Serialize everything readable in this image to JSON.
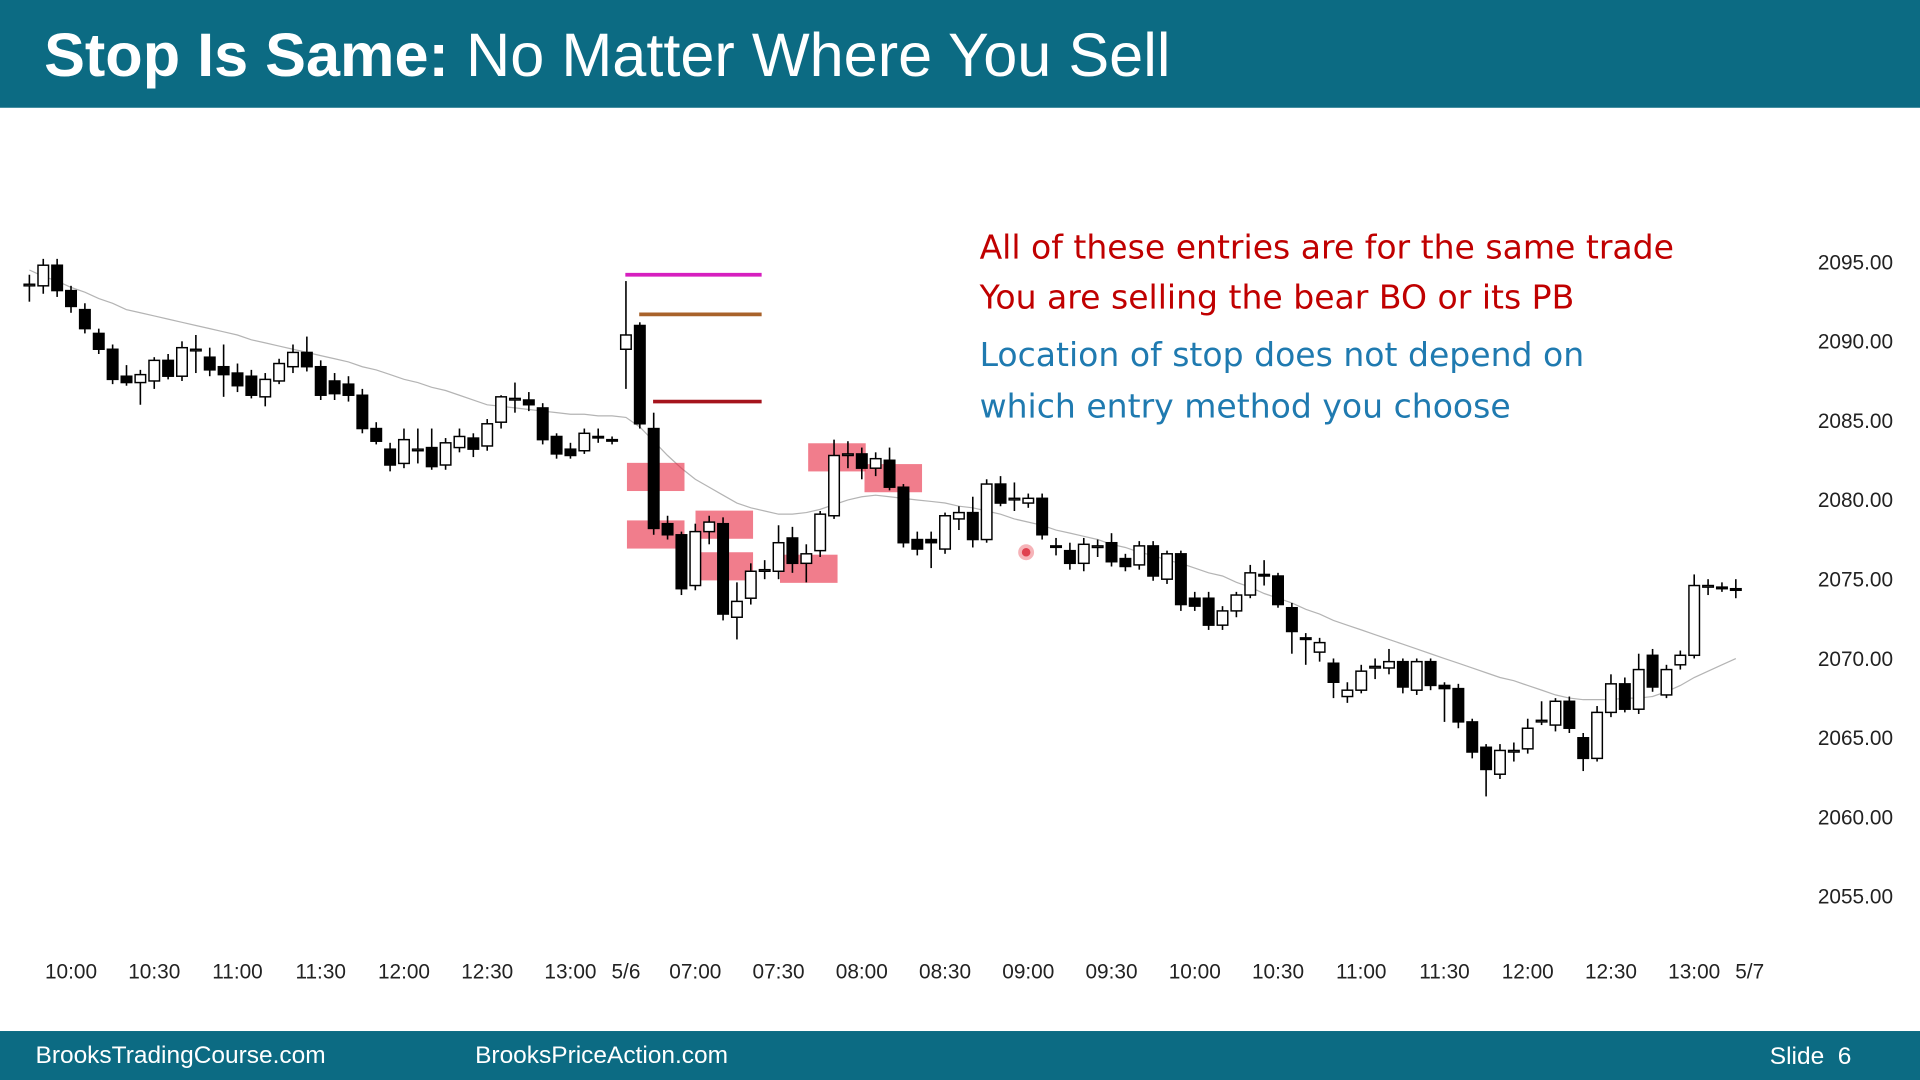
{
  "chart_data": {
    "type": "candlestick",
    "title": "Stop Is Same:",
    "subtitle": "No Matter Where You Sell",
    "annotations": [
      {
        "text": "All of these entries are for the same trade",
        "color": "#c00000"
      },
      {
        "text": "You are selling the bear BO or its PB",
        "color": "#c00000"
      },
      {
        "text": "Location of stop does not depend on",
        "color": "#1f7ab0"
      },
      {
        "text": "which entry method you choose",
        "color": "#1f7ab0"
      }
    ],
    "footer": {
      "left": "BrooksTradingCourse.com",
      "center": "BrooksPriceAction.com",
      "slide": "Slide  6"
    },
    "ylim": [
      2053,
      2101
    ],
    "yticks": [
      {
        "value": 2055,
        "label": "2055.00"
      },
      {
        "value": 2060,
        "label": "2060.00"
      },
      {
        "value": 2065,
        "label": "2065.00"
      },
      {
        "value": 2070,
        "label": "2070.00"
      },
      {
        "value": 2075,
        "label": "2075.00"
      },
      {
        "value": 2080,
        "label": "2080.00"
      },
      {
        "value": 2085,
        "label": "2085.00"
      },
      {
        "value": 2090,
        "label": "2090.00"
      },
      {
        "value": 2095,
        "label": "2095.00"
      }
    ],
    "categories": [
      null,
      null,
      null,
      "10:00",
      null,
      null,
      null,
      null,
      null,
      "10:30",
      null,
      null,
      null,
      null,
      null,
      "11:00",
      null,
      null,
      null,
      null,
      null,
      "11:30",
      null,
      null,
      null,
      null,
      null,
      "12:00",
      null,
      null,
      null,
      null,
      null,
      "12:30",
      null,
      null,
      null,
      null,
      null,
      "13:00",
      null,
      null,
      null,
      "5/6",
      null,
      null,
      null,
      null,
      "07:00",
      null,
      null,
      null,
      null,
      null,
      "07:30",
      null,
      null,
      null,
      null,
      null,
      "08:00",
      null,
      null,
      null,
      null,
      null,
      "08:30",
      null,
      null,
      null,
      null,
      null,
      "09:00",
      null,
      null,
      null,
      null,
      null,
      "09:30",
      null,
      null,
      null,
      null,
      null,
      "10:00",
      null,
      null,
      null,
      null,
      null,
      "10:30",
      null,
      null,
      null,
      null,
      null,
      "11:00",
      null,
      null,
      null,
      null,
      null,
      "11:30",
      null,
      null,
      null,
      null,
      null,
      "12:00",
      null,
      null,
      null,
      null,
      null,
      "12:30",
      null,
      null,
      null,
      null,
      null,
      "13:00",
      null,
      null,
      null,
      "5/7"
    ],
    "ohlc": [
      [
        2093.5,
        2094.2,
        2092.5,
        2093.6
      ],
      [
        2093.5,
        2095.2,
        2093,
        2094.8
      ],
      [
        2094.8,
        2095.2,
        2092.8,
        2093.2
      ],
      [
        2093.2,
        2093.5,
        2091.8,
        2092.2
      ],
      [
        2092,
        2092.4,
        2090.5,
        2090.8
      ],
      [
        2090.5,
        2090.8,
        2089.2,
        2089.5
      ],
      [
        2089.5,
        2089.8,
        2087.3,
        2087.6
      ],
      [
        2087.8,
        2088.5,
        2087.2,
        2087.4
      ],
      [
        2087.4,
        2088.2,
        2086,
        2087.9
      ],
      [
        2087.5,
        2089,
        2087,
        2088.8
      ],
      [
        2088.8,
        2089.2,
        2087.6,
        2087.8
      ],
      [
        2087.8,
        2090,
        2087.5,
        2089.6
      ],
      [
        2089.4,
        2090.4,
        2088,
        2089.5
      ],
      [
        2089,
        2089.6,
        2087.8,
        2088.2
      ],
      [
        2088.4,
        2089.8,
        2086.5,
        2087.9
      ],
      [
        2088,
        2088.6,
        2086.8,
        2087.2
      ],
      [
        2087.8,
        2088.2,
        2086.4,
        2086.6
      ],
      [
        2086.5,
        2088,
        2085.9,
        2087.6
      ],
      [
        2087.5,
        2088.9,
        2087.3,
        2088.6
      ],
      [
        2088.4,
        2089.8,
        2088,
        2089.3
      ],
      [
        2089.3,
        2090.3,
        2088.1,
        2088.4
      ],
      [
        2088.4,
        2088.8,
        2086.3,
        2086.6
      ],
      [
        2087.5,
        2088,
        2086.3,
        2086.7
      ],
      [
        2087.3,
        2087.8,
        2086.2,
        2086.6
      ],
      [
        2086.6,
        2087,
        2084.2,
        2084.5
      ],
      [
        2084.5,
        2084.9,
        2083.5,
        2083.7
      ],
      [
        2083.2,
        2083.6,
        2081.8,
        2082.2
      ],
      [
        2082.3,
        2084.5,
        2082,
        2083.8
      ],
      [
        2083.1,
        2084.5,
        2082.3,
        2083.2
      ],
      [
        2083.3,
        2084.5,
        2081.9,
        2082.1
      ],
      [
        2082.2,
        2083.9,
        2081.9,
        2083.6
      ],
      [
        2083.3,
        2084.5,
        2083,
        2084
      ],
      [
        2083.9,
        2084.2,
        2082.7,
        2083.2
      ],
      [
        2083.4,
        2085.1,
        2083.1,
        2084.8
      ],
      [
        2084.9,
        2086.6,
        2084.5,
        2086.5
      ],
      [
        2086.3,
        2087.4,
        2085.5,
        2086.4
      ],
      [
        2086.3,
        2086.8,
        2085.6,
        2086
      ],
      [
        2085.8,
        2086.1,
        2083.5,
        2083.8
      ],
      [
        2084,
        2084.2,
        2082.6,
        2082.9
      ],
      [
        2083.2,
        2083.6,
        2082.6,
        2082.8
      ],
      [
        2083.1,
        2084.5,
        2082.9,
        2084.2
      ],
      [
        2084,
        2084.5,
        2083.6,
        2084
      ],
      [
        2083.8,
        2084,
        2083.5,
        2083.8
      ],
      [
        2089.5,
        2093.8,
        2087,
        2090.4
      ],
      [
        2091,
        2091.2,
        2084.5,
        2084.8
      ],
      [
        2084.5,
        2085.5,
        2077.8,
        2078.2
      ],
      [
        2078.5,
        2079,
        2077.5,
        2077.8
      ],
      [
        2077.8,
        2078,
        2074,
        2074.4
      ],
      [
        2074.6,
        2078.5,
        2074.3,
        2078
      ],
      [
        2078,
        2079,
        2077.2,
        2078.6
      ],
      [
        2078.5,
        2078.9,
        2072.4,
        2072.8
      ],
      [
        2072.6,
        2074.8,
        2071.2,
        2073.6
      ],
      [
        2073.8,
        2076,
        2073.4,
        2075.5
      ],
      [
        2075.5,
        2076.2,
        2075,
        2075.6
      ],
      [
        2075.5,
        2078.4,
        2075,
        2077.3
      ],
      [
        2077.6,
        2078.3,
        2075.4,
        2076
      ],
      [
        2076,
        2077.2,
        2074.8,
        2076.6
      ],
      [
        2076.8,
        2079.3,
        2076.4,
        2079.1
      ],
      [
        2079,
        2083.8,
        2078.8,
        2082.8
      ],
      [
        2082.8,
        2083.7,
        2082,
        2082.9
      ],
      [
        2082.9,
        2083.3,
        2081.3,
        2082
      ],
      [
        2082,
        2083,
        2081.5,
        2082.6
      ],
      [
        2082.5,
        2083.3,
        2080.6,
        2080.8
      ],
      [
        2080.8,
        2081,
        2077,
        2077.3
      ],
      [
        2077.5,
        2078,
        2076.5,
        2076.9
      ],
      [
        2077.5,
        2078,
        2075.7,
        2077.3
      ],
      [
        2076.9,
        2079.2,
        2076.6,
        2079
      ],
      [
        2078.8,
        2079.6,
        2078.1,
        2079.2
      ],
      [
        2079.2,
        2080.2,
        2077,
        2077.5
      ],
      [
        2077.5,
        2081.3,
        2077.3,
        2081
      ],
      [
        2081,
        2081.5,
        2079.6,
        2079.8
      ],
      [
        2080,
        2081.1,
        2079.3,
        2080.1
      ],
      [
        2079.8,
        2080.4,
        2079.5,
        2080.1
      ],
      [
        2080.1,
        2080.4,
        2077.5,
        2077.8
      ],
      [
        2077.1,
        2077.6,
        2076.5,
        2077.1
      ],
      [
        2076.8,
        2077.3,
        2075.6,
        2076
      ],
      [
        2076,
        2077.6,
        2075.5,
        2077.2
      ],
      [
        2077,
        2077.5,
        2076.4,
        2077.1
      ],
      [
        2077.3,
        2077.9,
        2075.8,
        2076.1
      ],
      [
        2076.3,
        2076.6,
        2075.5,
        2075.8
      ],
      [
        2075.9,
        2077.4,
        2075.6,
        2077.1
      ],
      [
        2077.1,
        2077.4,
        2074.9,
        2075.2
      ],
      [
        2075,
        2076.8,
        2074.7,
        2076.6
      ],
      [
        2076.6,
        2076.8,
        2073,
        2073.4
      ],
      [
        2073.8,
        2074.2,
        2073,
        2073.3
      ],
      [
        2073.8,
        2074.2,
        2071.8,
        2072.1
      ],
      [
        2072.1,
        2073.3,
        2071.8,
        2073
      ],
      [
        2073,
        2074.2,
        2072.6,
        2074
      ],
      [
        2074,
        2075.9,
        2073.8,
        2075.4
      ],
      [
        2075.3,
        2076.2,
        2074.6,
        2075.2
      ],
      [
        2075.2,
        2075.4,
        2073.2,
        2073.4
      ],
      [
        2073.2,
        2073.5,
        2070.3,
        2071.7
      ],
      [
        2071.3,
        2071.6,
        2069.6,
        2071.2
      ],
      [
        2070.4,
        2071.3,
        2069.8,
        2071
      ],
      [
        2069.7,
        2070,
        2067.5,
        2068.5
      ],
      [
        2067.6,
        2068.5,
        2067.2,
        2068
      ],
      [
        2068,
        2069.6,
        2067.8,
        2069.2
      ],
      [
        2069.4,
        2070,
        2068.7,
        2069.5
      ],
      [
        2069.4,
        2070.6,
        2069,
        2069.8
      ],
      [
        2069.8,
        2070,
        2067.8,
        2068.2
      ],
      [
        2068,
        2070,
        2067.7,
        2069.8
      ],
      [
        2069.8,
        2070,
        2068,
        2068.3
      ],
      [
        2068.3,
        2068.5,
        2066,
        2068.1
      ],
      [
        2068.1,
        2068.4,
        2065.6,
        2066
      ],
      [
        2066,
        2066.2,
        2063.7,
        2064.1
      ],
      [
        2064.4,
        2064.6,
        2061.3,
        2063
      ],
      [
        2062.7,
        2064.6,
        2062.4,
        2064.2
      ],
      [
        2064.1,
        2064.7,
        2063.5,
        2064.2
      ],
      [
        2064.3,
        2066.2,
        2064,
        2065.6
      ],
      [
        2066,
        2067.3,
        2065.8,
        2066.1
      ],
      [
        2065.8,
        2067.5,
        2065.4,
        2067.3
      ],
      [
        2067.3,
        2067.6,
        2065.3,
        2065.6
      ],
      [
        2065,
        2065.3,
        2062.9,
        2063.7
      ],
      [
        2063.7,
        2067,
        2063.5,
        2066.6
      ],
      [
        2066.6,
        2069,
        2066.3,
        2068.4
      ],
      [
        2068.4,
        2068.8,
        2066.6,
        2066.8
      ],
      [
        2066.8,
        2070.3,
        2066.5,
        2069.3
      ],
      [
        2070.2,
        2070.6,
        2067.9,
        2068.2
      ],
      [
        2067.7,
        2069.6,
        2067.5,
        2069.3
      ],
      [
        2069.6,
        2070.5,
        2069.3,
        2070.2
      ],
      [
        2070.2,
        2075.3,
        2070,
        2074.6
      ],
      [
        2074.5,
        2075,
        2074,
        2074.6
      ],
      [
        2074.5,
        2074.8,
        2074.2,
        2074.4
      ],
      [
        2074.4,
        2075,
        2073.8,
        2074.3
      ],
      null
    ],
    "ma": {
      "color": "#b4b4b4",
      "values": [
        2094.5,
        2094.1,
        2093.8,
        2093.4,
        2093.1,
        2092.7,
        2092.4,
        2092.0,
        2091.8,
        2091.6,
        2091.4,
        2091.2,
        2091.0,
        2090.8,
        2090.6,
        2090.4,
        2090.1,
        2089.9,
        2089.7,
        2089.5,
        2089.3,
        2089.1,
        2088.9,
        2088.7,
        2088.4,
        2088.2,
        2087.9,
        2087.6,
        2087.4,
        2087.1,
        2086.9,
        2086.6,
        2086.3,
        2086.0,
        2085.9,
        2085.8,
        2085.7,
        2085.6,
        2085.5,
        2085.4,
        2085.4,
        2085.3,
        2085.3,
        2085.2,
        2084.6,
        2083.7,
        2082.8,
        2082.0,
        2081.3,
        2080.8,
        2080.3,
        2079.8,
        2079.5,
        2079.3,
        2079.1,
        2079.1,
        2079.2,
        2079.4,
        2079.7,
        2080.0,
        2080.2,
        2080.3,
        2080.2,
        2080.1,
        2080.0,
        2079.9,
        2079.8,
        2079.6,
        2079.5,
        2079.3,
        2079.1,
        2078.8,
        2078.6,
        2078.4,
        2078.1,
        2077.9,
        2077.7,
        2077.5,
        2077.2,
        2077.0,
        2076.7,
        2076.5,
        2076.2,
        2076.0,
        2075.7,
        2075.4,
        2075.2,
        2074.8,
        2074.5,
        2074.1,
        2073.8,
        2073.5,
        2073.1,
        2072.8,
        2072.4,
        2072.1,
        2071.8,
        2071.5,
        2071.2,
        2070.9,
        2070.6,
        2070.3,
        2070.0,
        2069.7,
        2069.4,
        2069.1,
        2068.8,
        2068.6,
        2068.3,
        2068.0,
        2067.7,
        2067.5,
        2067.4,
        2067.4,
        2067.4,
        2067.5,
        2067.5,
        2067.6,
        2067.9,
        2068.3,
        2068.8,
        2069.2,
        2069.6,
        2070.0,
        null
      ]
    },
    "levels": [
      {
        "value": 2094.2,
        "color": "#d61fbf"
      },
      {
        "value": 2091.7,
        "color": "#a8622a"
      },
      {
        "value": 2086.2,
        "color": "#a5141d"
      }
    ],
    "bull_color": "#ffffff",
    "bear_color": "#000000"
  }
}
